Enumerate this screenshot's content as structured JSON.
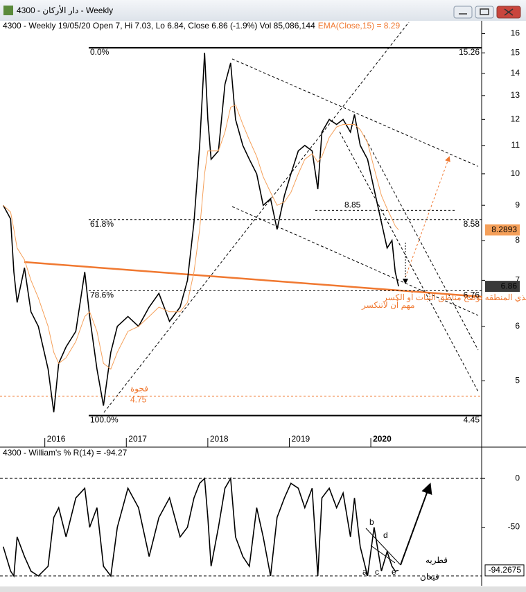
{
  "window": {
    "title": "4300 - دار الأركان - Weekly"
  },
  "chart_data": [
    {
      "type": "line",
      "header": "4300 - Weekly 19/05/20 Open 7, Hi 7.03, Lo 6.84, Close 6.86 (-1.9%) Vol 85,086,144",
      "indicator_label": "EMA(Close,15) = 8.29",
      "x": [
        2015.49,
        2015.58,
        2015.62,
        2015.66,
        2015.75,
        2015.83,
        2015.92,
        2016.04,
        2016.11,
        2016.17,
        2016.26,
        2016.38,
        2016.49,
        2016.55,
        2016.64,
        2016.72,
        2016.81,
        2016.89,
        2017.02,
        2017.15,
        2017.28,
        2017.4,
        2017.53,
        2017.66,
        2017.75,
        2017.83,
        2017.9,
        2017.96,
        2018.0,
        2018.04,
        2018.13,
        2018.21,
        2018.28,
        2018.34,
        2018.43,
        2018.51,
        2018.6,
        2018.68,
        2018.77,
        2018.85,
        2018.94,
        2019.02,
        2019.11,
        2019.19,
        2019.28,
        2019.35,
        2019.4,
        2019.49,
        2019.58,
        2019.66,
        2019.75,
        2019.8,
        2019.87,
        2019.96,
        2020.04,
        2020.13,
        2020.2,
        2020.26,
        2020.3,
        2020.34
      ],
      "series": [
        {
          "color": "#000000",
          "values": [
            9.0,
            8.6,
            7.2,
            6.5,
            7.3,
            6.3,
            6.0,
            5.2,
            4.5,
            5.3,
            5.6,
            5.9,
            7.2,
            6.2,
            5.2,
            4.6,
            5.5,
            6.0,
            6.2,
            6.0,
            6.4,
            6.7,
            6.1,
            6.4,
            7.0,
            8.5,
            11.0,
            15.0,
            12.0,
            10.5,
            10.8,
            13.5,
            14.5,
            12.0,
            11.0,
            10.5,
            10.0,
            9.0,
            9.2,
            8.3,
            9.3,
            10.0,
            10.8,
            11.0,
            10.8,
            9.5,
            11.5,
            12.0,
            11.8,
            12.0,
            11.5,
            12.2,
            11.0,
            10.5,
            9.5,
            8.5,
            7.8,
            8.0,
            7.2,
            6.86
          ]
        },
        {
          "color": "#f5a05a",
          "values": [
            9.0,
            8.8,
            8.3,
            7.8,
            7.5,
            7.0,
            6.6,
            6.0,
            5.5,
            5.3,
            5.4,
            5.7,
            6.2,
            6.3,
            5.9,
            5.3,
            5.2,
            5.5,
            5.9,
            6.0,
            6.2,
            6.4,
            6.3,
            6.3,
            6.5,
            7.2,
            8.3,
            10.0,
            10.8,
            10.8,
            10.8,
            11.5,
            12.5,
            12.6,
            11.8,
            11.2,
            10.6,
            9.9,
            9.4,
            9.0,
            9.1,
            9.4,
            10.0,
            10.5,
            10.7,
            10.4,
            10.6,
            11.3,
            11.7,
            11.8,
            11.8,
            11.8,
            11.6,
            11.1,
            10.2,
            9.3,
            8.9,
            8.6,
            8.4,
            8.29
          ]
        }
      ],
      "xlim": [
        2015.45,
        2021.36
      ],
      "xticks": [
        2016,
        2017,
        2018,
        2019,
        2020
      ],
      "ylim": [
        4.05,
        16.7
      ],
      "yticks": [
        5,
        6,
        7,
        8,
        9,
        10,
        11,
        12,
        13,
        14,
        15,
        16
      ],
      "log_scale": true,
      "fib_levels": [
        {
          "label": "0.0%",
          "value": 15.26,
          "style": "solid"
        },
        {
          "label": "61.8%",
          "value": 8.58,
          "style": "dashed"
        },
        {
          "label": "78.6%",
          "value": 6.76,
          "style": "dashed"
        },
        {
          "label": "100.0%",
          "value": 4.45,
          "style": "solid"
        }
      ],
      "level": 8.85,
      "gap": {
        "label": "فجوة",
        "value": 4.75
      },
      "annotation": [
        "هذي المنطقه توضح مناطق الثبات أو الكسر",
        "مهم أن لاتنكسر"
      ],
      "price_labels": [
        {
          "value": 8.2893,
          "color": "#f5a05a"
        },
        {
          "value": 6.86,
          "color": "#3a3a3a"
        }
      ]
    },
    {
      "type": "line",
      "title": "4300 - William's % R(14) = -94.27",
      "x": [
        2015.49,
        2015.58,
        2015.62,
        2015.66,
        2015.75,
        2015.83,
        2015.92,
        2016.04,
        2016.11,
        2016.17,
        2016.26,
        2016.38,
        2016.49,
        2016.55,
        2016.64,
        2016.72,
        2016.81,
        2016.89,
        2017.02,
        2017.15,
        2017.28,
        2017.4,
        2017.53,
        2017.66,
        2017.75,
        2017.83,
        2017.9,
        2017.96,
        2018.0,
        2018.04,
        2018.13,
        2018.21,
        2018.28,
        2018.34,
        2018.43,
        2018.51,
        2018.6,
        2018.68,
        2018.77,
        2018.85,
        2018.94,
        2019.02,
        2019.11,
        2019.19,
        2019.28,
        2019.35,
        2019.4,
        2019.49,
        2019.58,
        2019.66,
        2019.75,
        2019.8,
        2019.87,
        2019.96,
        2020.04,
        2020.13,
        2020.2,
        2020.26,
        2020.3,
        2020.34
      ],
      "series": [
        {
          "color": "#000000",
          "values": [
            -70,
            -95,
            -100,
            -60,
            -80,
            -95,
            -100,
            -90,
            -40,
            -30,
            -60,
            -20,
            -10,
            -50,
            -30,
            -90,
            -100,
            -50,
            -10,
            -30,
            -80,
            -40,
            -20,
            -60,
            -50,
            -20,
            -5,
            0,
            -40,
            -90,
            -50,
            -10,
            0,
            -60,
            -80,
            -90,
            -30,
            -60,
            -100,
            -40,
            -20,
            -5,
            -10,
            -30,
            -10,
            -100,
            -20,
            -10,
            -30,
            -15,
            -60,
            -20,
            -70,
            -100,
            -50,
            -95,
            -75,
            -90,
            -95,
            -94.27
          ]
        }
      ],
      "xlim": [
        2015.45,
        2021.36
      ],
      "ylim": [
        -110,
        25
      ],
      "yticks": [
        0,
        -50
      ],
      "hlines": [
        0,
        -100
      ],
      "last_value": -94.2675,
      "points": [
        "a",
        "b",
        "c",
        "d",
        "e"
      ],
      "annotation": [
        "قطريه",
        "قيعان"
      ]
    }
  ]
}
